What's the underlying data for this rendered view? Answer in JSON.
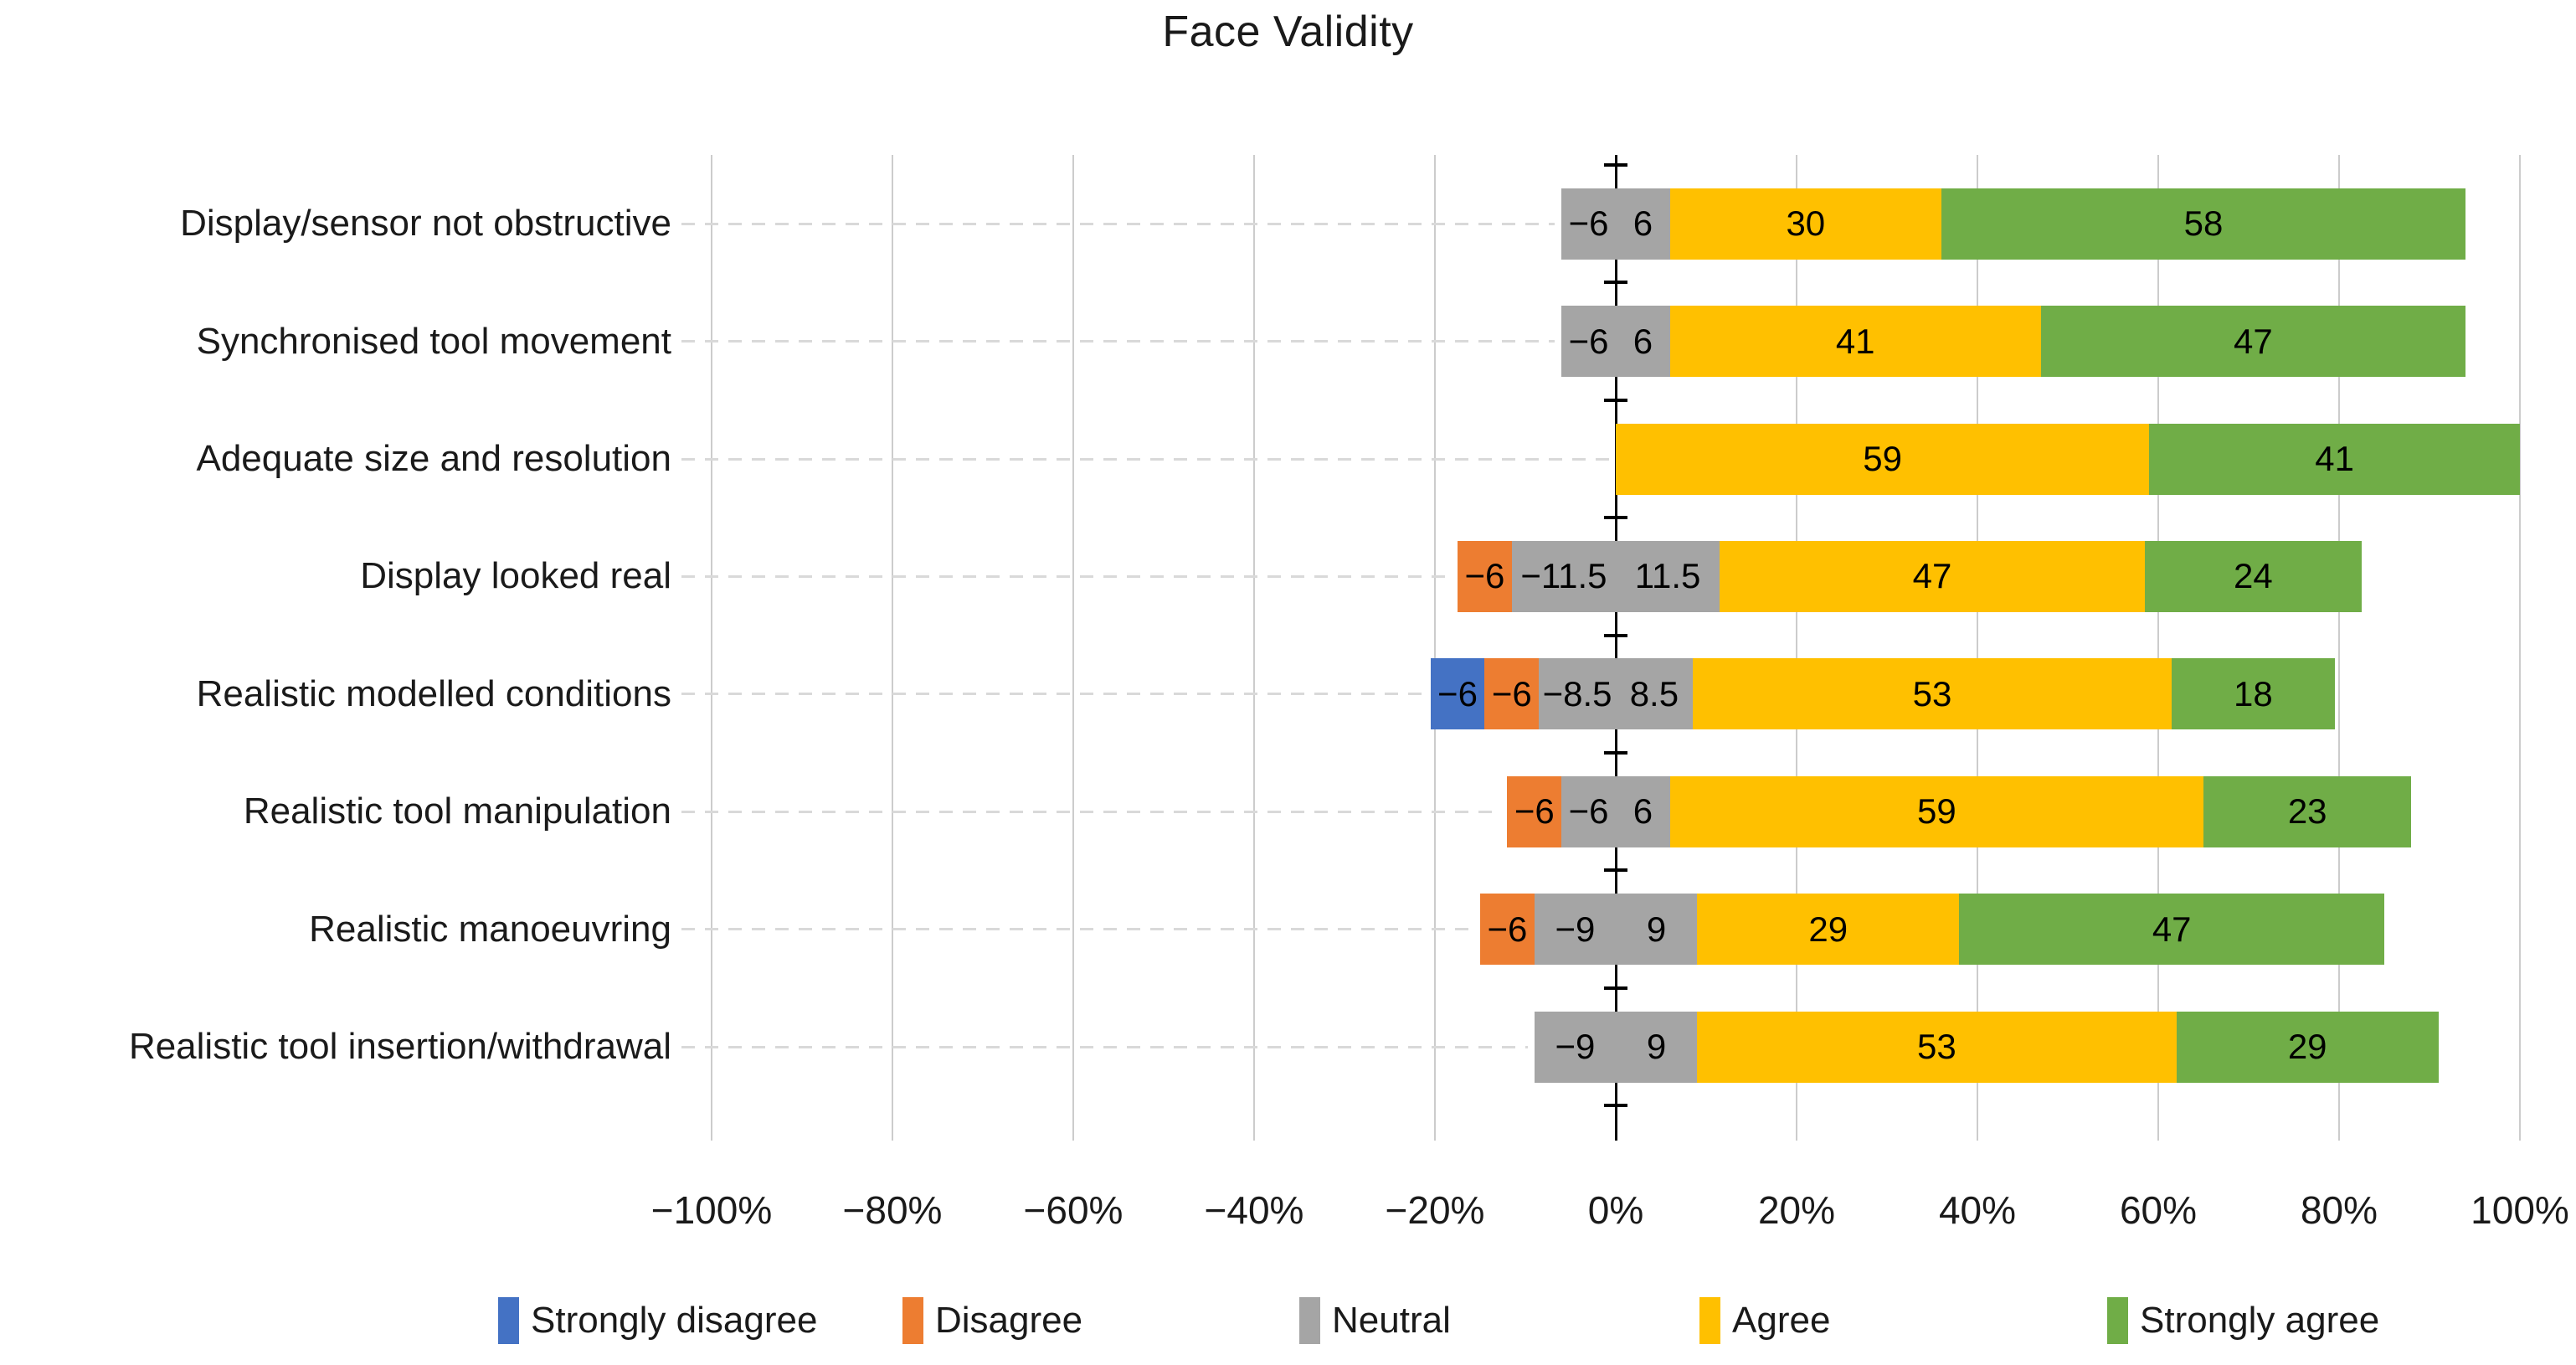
{
  "title": "Face Validity",
  "colors": {
    "strongly_disagree": "#4472C4",
    "disagree": "#ED7D31",
    "neutral": "#A5A5A5",
    "agree": "#FFC000",
    "strongly_agree": "#70AD47",
    "gridline": "#CCCCCC",
    "zero_axis": "#000000",
    "leader_line": "#D9D9D9",
    "text": "#1A1A1A"
  },
  "x_axis": {
    "min": -100,
    "max": 100,
    "step": 20,
    "tick_labels": [
      "−100%",
      "−80%",
      "−60%",
      "−40%",
      "−20%",
      "0%",
      "20%",
      "40%",
      "60%",
      "80%",
      "100%"
    ]
  },
  "legend": {
    "position": "bottom",
    "items": [
      {
        "label": "Strongly disagree",
        "color_key": "strongly_disagree"
      },
      {
        "label": "Disagree",
        "color_key": "disagree"
      },
      {
        "label": "Neutral",
        "color_key": "neutral"
      },
      {
        "label": "Agree",
        "color_key": "agree"
      },
      {
        "label": "Strongly agree",
        "color_key": "strongly_agree"
      }
    ]
  },
  "chart_data": {
    "type": "bar",
    "subtype": "diverging-stacked-likert",
    "orientation": "horizontal",
    "title": "Face Validity",
    "xlabel": "",
    "ylabel": "",
    "xlim": [
      -100,
      100
    ],
    "grid": true,
    "legend_position": "bottom",
    "categories": [
      "Display/sensor not obstructive",
      "Synchronised tool movement",
      "Adequate size and resolution",
      "Display looked real",
      "Realistic modelled conditions",
      "Realistic tool manipulation",
      "Realistic manoeuvring",
      "Realistic tool insertion/withdrawal"
    ],
    "series": [
      {
        "name": "Strongly disagree",
        "color_key": "strongly_disagree",
        "values": [
          0,
          0,
          0,
          0,
          -6,
          0,
          0,
          0
        ],
        "labels": [
          "",
          "",
          "",
          "",
          "−6",
          "",
          "",
          ""
        ]
      },
      {
        "name": "Disagree",
        "color_key": "disagree",
        "values": [
          0,
          0,
          0,
          -6,
          -6,
          -6,
          -6,
          0
        ],
        "labels": [
          "",
          "",
          "",
          "−6",
          "−6",
          "−6",
          "−6",
          ""
        ]
      },
      {
        "name": "Neutral (negative half)",
        "color_key": "neutral",
        "values": [
          -6,
          -6,
          0,
          -11.5,
          -8.5,
          -6,
          -9,
          -9
        ],
        "labels": [
          "−6",
          "−6",
          "",
          "−11.5",
          "−8.5",
          "−6",
          "−9",
          "−9"
        ]
      },
      {
        "name": "Neutral (positive half)",
        "color_key": "neutral",
        "values": [
          6,
          6,
          0,
          11.5,
          8.5,
          6,
          9,
          9
        ],
        "labels": [
          "6",
          "6",
          "",
          "11.5",
          "8.5",
          "6",
          "9",
          "9"
        ]
      },
      {
        "name": "Agree",
        "color_key": "agree",
        "values": [
          30,
          41,
          59,
          47,
          53,
          59,
          29,
          53
        ],
        "labels": [
          "30",
          "41",
          "59",
          "47",
          "53",
          "59",
          "29",
          "53"
        ]
      },
      {
        "name": "Strongly agree",
        "color_key": "strongly_agree",
        "values": [
          58,
          47,
          41,
          24,
          18,
          23,
          47,
          29
        ],
        "labels": [
          "58",
          "47",
          "41",
          "24",
          "18",
          "23",
          "47",
          "29"
        ]
      }
    ]
  }
}
